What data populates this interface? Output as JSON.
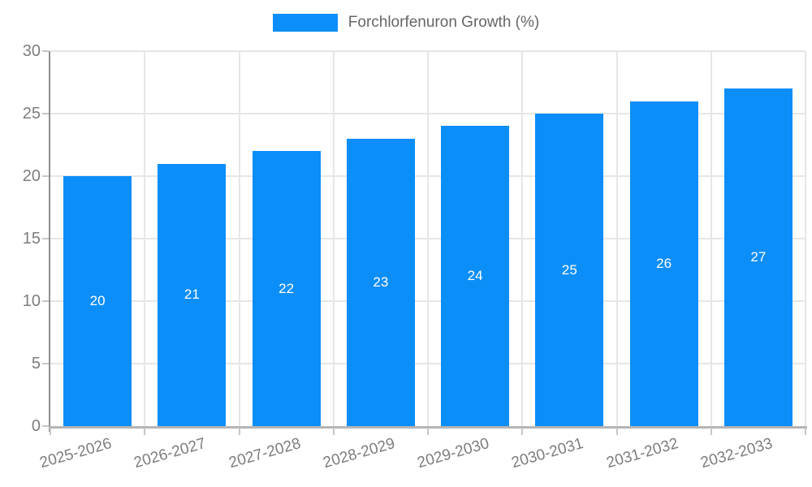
{
  "chart_data": {
    "type": "bar",
    "title": "Forchlorfenuron Growth (%)",
    "legend": {
      "label": "Forchlorfenuron Growth (%)",
      "position": "top"
    },
    "categories": [
      "2025-2026",
      "2026-2027",
      "2027-2028",
      "2028-2029",
      "2029-2030",
      "2030-2031",
      "2031-2032",
      "2032-2033"
    ],
    "series": [
      {
        "name": "Forchlorfenuron Growth (%)",
        "values": [
          20,
          21,
          22,
          23,
          24,
          25,
          26,
          27
        ]
      }
    ],
    "xlabel": "",
    "ylabel": "",
    "ylim": [
      0,
      30
    ],
    "yticks": [
      0,
      5,
      10,
      15,
      20,
      25,
      30
    ],
    "grid": true,
    "x_label_rotation_deg": -16,
    "colors": {
      "bar": "#0c8ef8",
      "data_label": "#ffffff",
      "grid": "#e6e6e6",
      "y_axis": "#8f8f8f",
      "x_axis": "#b5b5b5",
      "tick": "#c6c6c6",
      "tick_label": "#7d7d7d",
      "legend_text": "#666666"
    }
  }
}
